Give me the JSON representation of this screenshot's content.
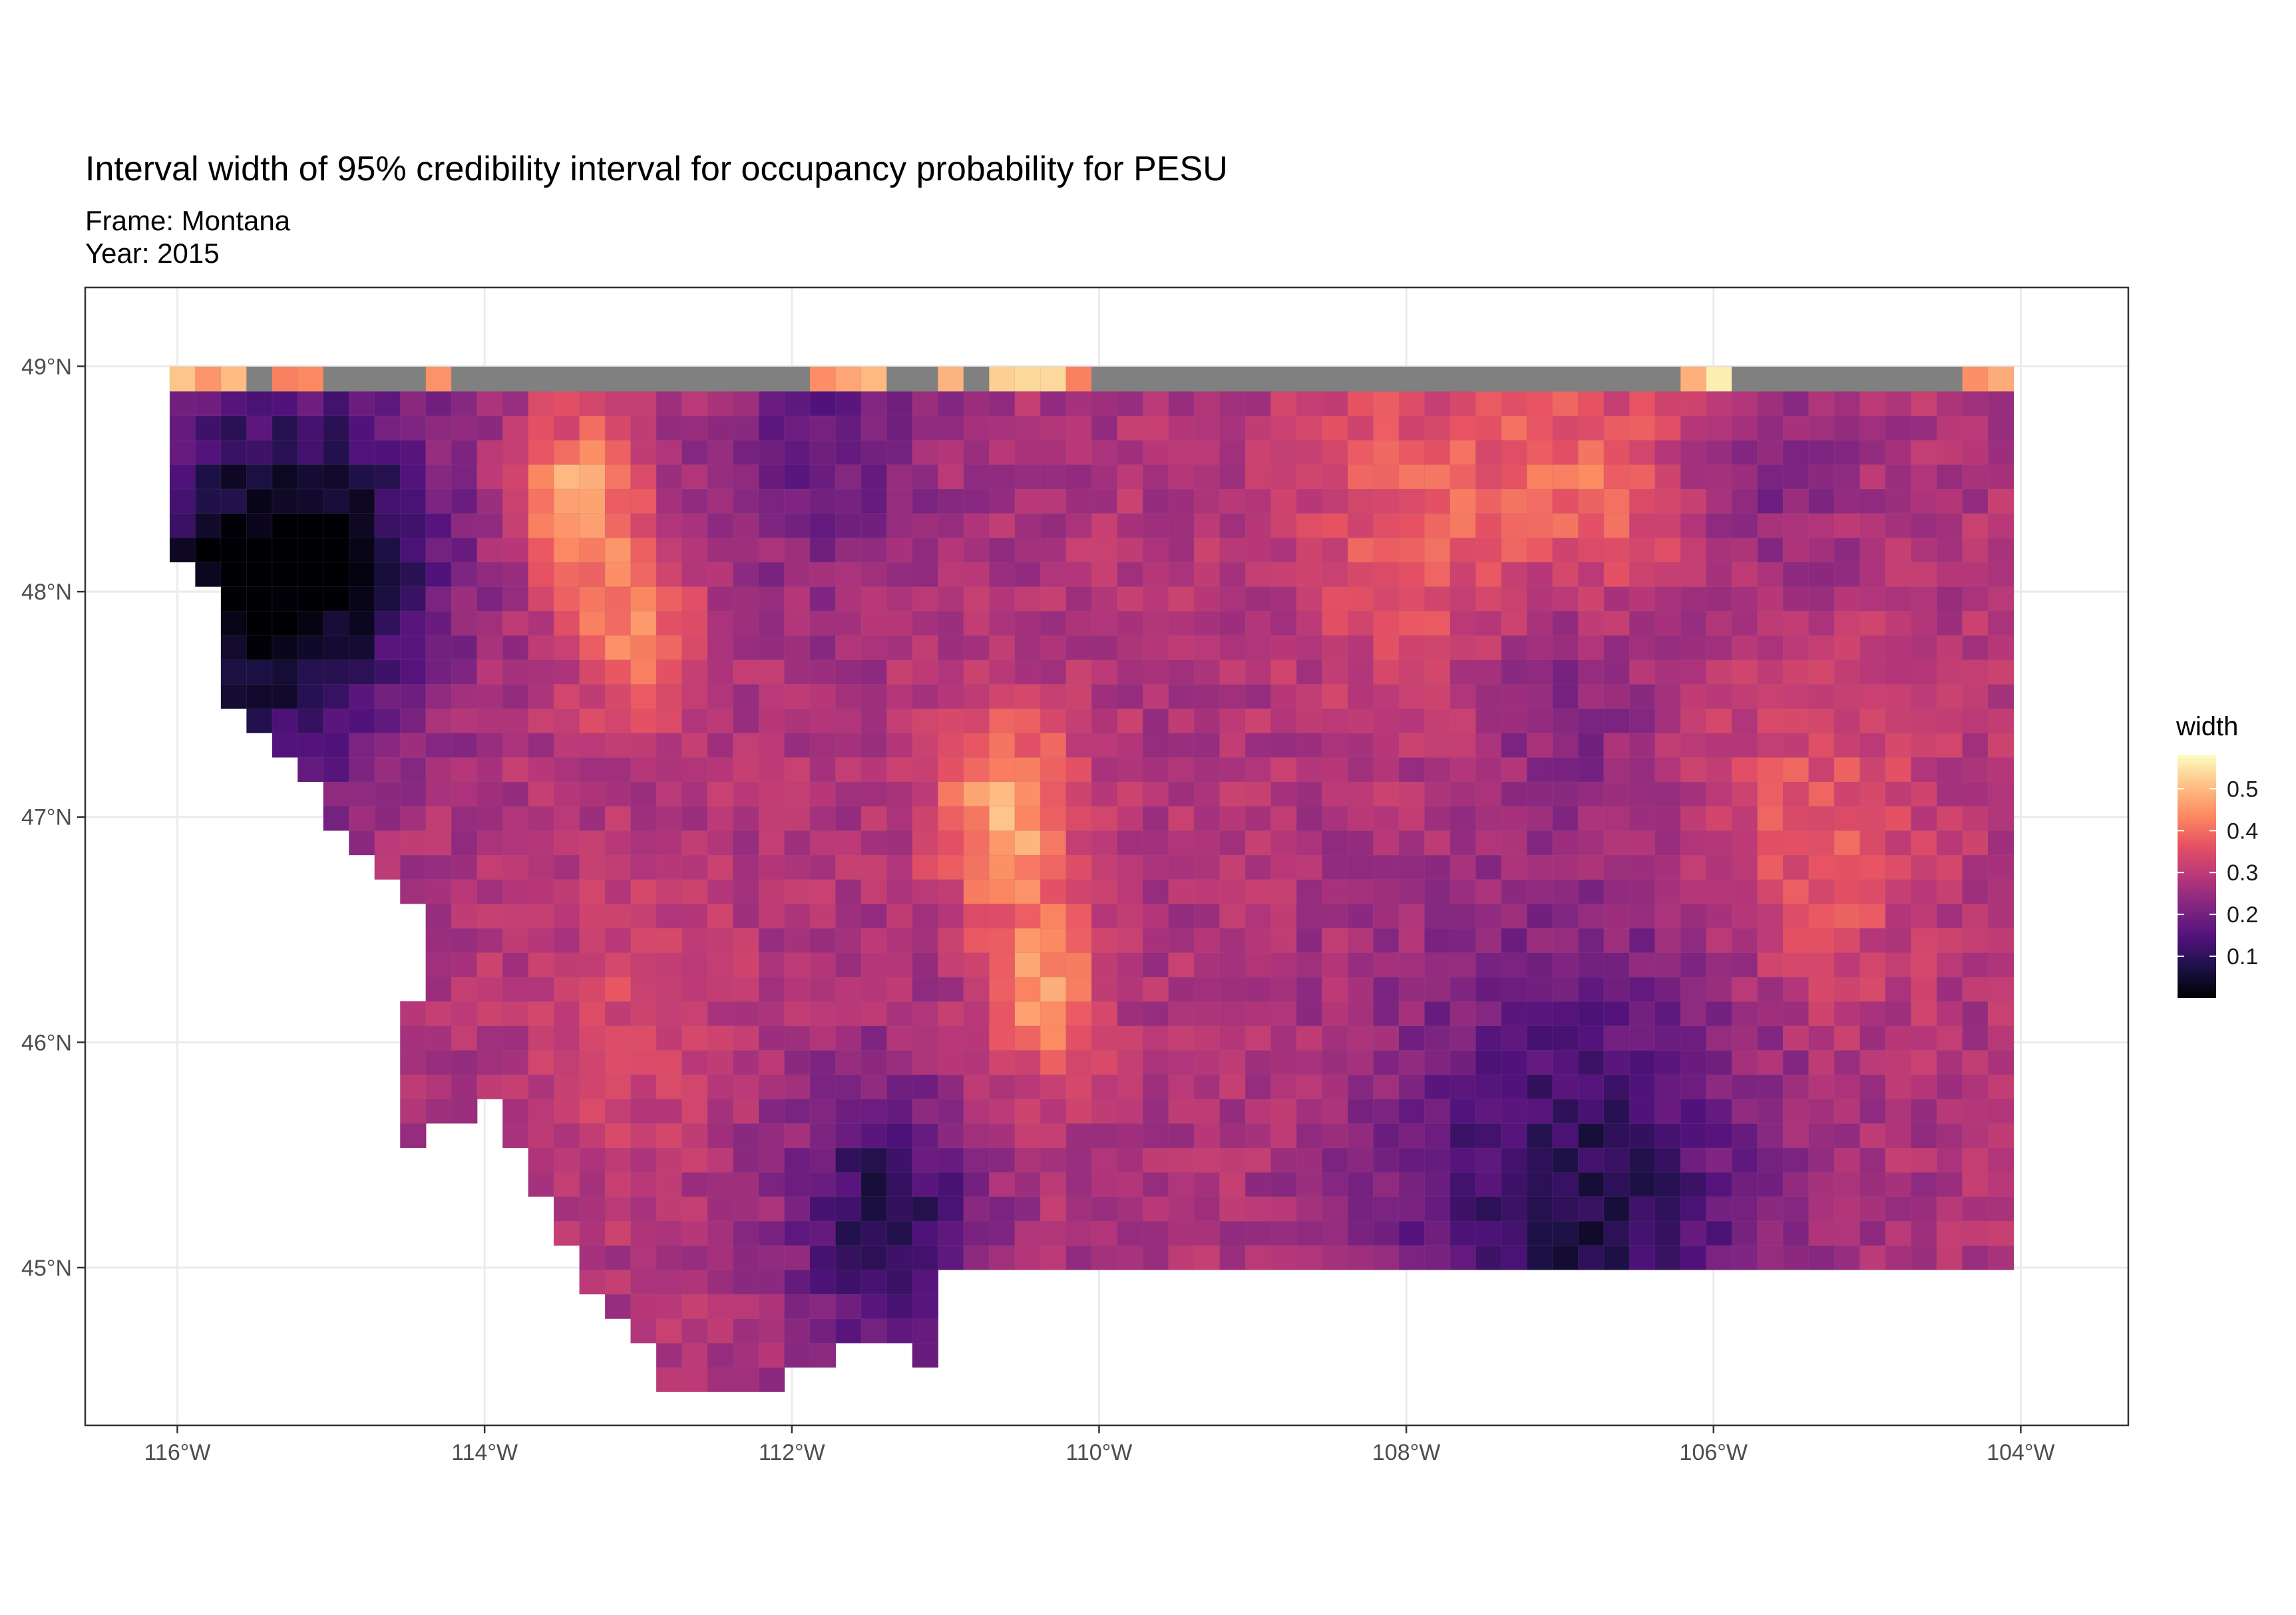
{
  "title": "Interval width of 95% credibility interval for occupancy probability for PESU",
  "subtitle_frame": "Frame: Montana",
  "subtitle_year": "Year: 2015",
  "x_ticks": [
    "116°W",
    "114°W",
    "112°W",
    "110°W",
    "108°W",
    "106°W",
    "104°W"
  ],
  "y_ticks": [
    "49°N",
    "48°N",
    "47°N",
    "46°N",
    "45°N"
  ],
  "legend": {
    "title": "width",
    "labels": [
      "0.5",
      "0.4",
      "0.3",
      "0.2",
      "0.1"
    ],
    "palette": "magma"
  },
  "colors": {
    "missing": "#808080",
    "panel_border": "#333333",
    "grid": "#ebebeb"
  },
  "chart_data": {
    "type": "heatmap",
    "xlim": [
      -116.6,
      -103.3
    ],
    "ylim": [
      44.3,
      49.35
    ],
    "x_breaks": [
      -116,
      -114,
      -112,
      -110,
      -108,
      -106,
      -104
    ],
    "y_breaks": [
      49,
      48,
      47,
      46,
      45
    ],
    "fill_range": [
      0.0,
      0.58
    ],
    "legend_breaks": [
      0.5,
      0.4,
      0.3,
      0.2,
      0.1
    ]
  }
}
